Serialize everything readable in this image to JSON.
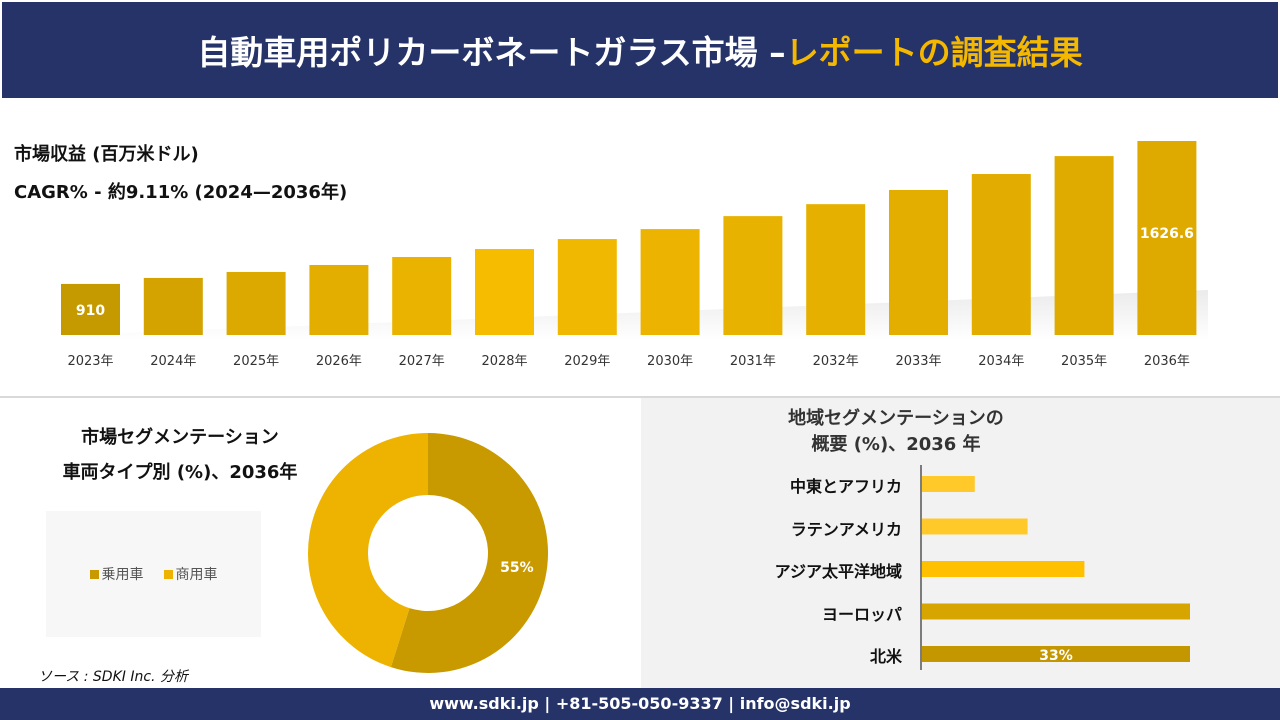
{
  "header": {
    "title_main": "自動車用ポリカーボネートガラス市場 –",
    "title_highlight": "レポートの調査結果"
  },
  "revenue": {
    "title": "市場収益 (百万米ドル)",
    "cagr": "CAGR% - 約9.11% (2024—2036年)"
  },
  "segment": {
    "title_line1": "市場セグメンテーション",
    "title_line2": "車両タイプ別 (%)、2036年"
  },
  "region": {
    "title_line1": "地域セグメンテーションの",
    "title_line2": "概要 (%)、2036 年"
  },
  "source": "ソース : SDKI Inc. 分析",
  "footer": "www.sdki.jp | +81-505-050-9337 | info@sdki.jp",
  "chart_data": [
    {
      "type": "bar",
      "title": "市場収益 (百万米ドル)",
      "categories": [
        "2023年",
        "2024年",
        "2025年",
        "2026年",
        "2027年",
        "2028年",
        "2029年",
        "2030年",
        "2031年",
        "2032年",
        "2033年",
        "2034年",
        "2035年",
        "2036年"
      ],
      "values": [
        910,
        940,
        970,
        1005,
        1045,
        1085,
        1135,
        1185,
        1250,
        1310,
        1381,
        1461,
        1551,
        1626.6
      ],
      "data_labels": {
        "0": "910",
        "13": "1626.6"
      },
      "ylim": [
        654,
        1700
      ],
      "colors": [
        "#c49a00",
        "#d4a300",
        "#dba900",
        "#e3ae00",
        "#eab300",
        "#f5bc00",
        "#f0b800",
        "#ecb400",
        "#e8b200",
        "#e6b000",
        "#e4ae00",
        "#e2ad00",
        "#e0ab00",
        "#deaa00"
      ]
    },
    {
      "type": "pie",
      "title": "車両タイプ別 (%)、2036年",
      "categories": [
        "乗用車",
        "商用車"
      ],
      "values": [
        55,
        45
      ],
      "data_labels": [
        "55%",
        ""
      ],
      "colors": [
        "#c89a00",
        "#eeb300"
      ],
      "legend": "left"
    },
    {
      "type": "bar",
      "orientation": "horizontal",
      "title": "地域セグメンテーションの概要 (%)、2036 年",
      "categories": [
        "中東とアフリカ",
        "ラテンアメリカ",
        "アジア太平洋地域",
        "ヨーロッパ",
        "北米"
      ],
      "values": [
        6.5,
        13,
        20,
        33,
        33
      ],
      "data_labels": [
        "",
        "",
        "",
        "",
        "33%"
      ],
      "colors": [
        "#ffc92a",
        "#ffc92a",
        "#ffc000",
        "#d6a500",
        "#c49600"
      ]
    }
  ]
}
